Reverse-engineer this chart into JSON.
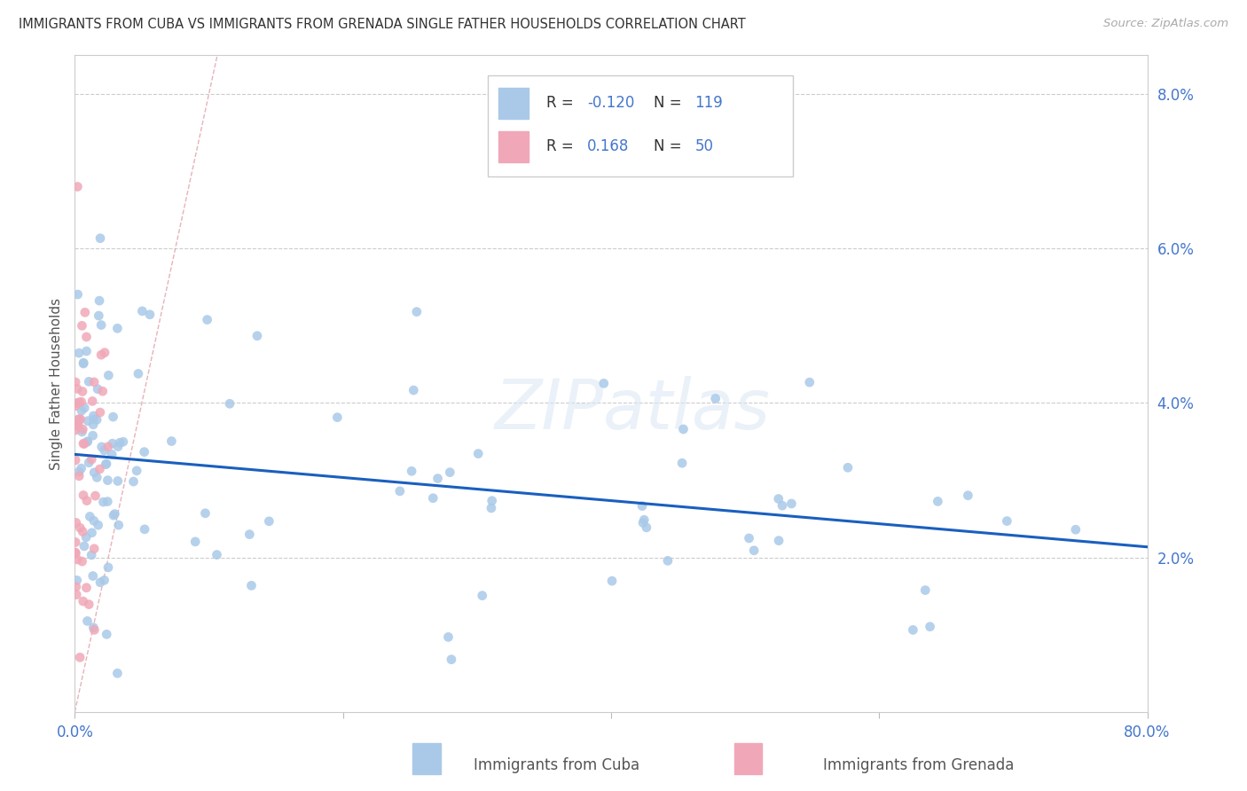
{
  "title": "IMMIGRANTS FROM CUBA VS IMMIGRANTS FROM GRENADA SINGLE FATHER HOUSEHOLDS CORRELATION CHART",
  "source": "Source: ZipAtlas.com",
  "ylabel": "Single Father Households",
  "legend_labels": [
    "Immigrants from Cuba",
    "Immigrants from Grenada"
  ],
  "legend_R": [
    "-0.120",
    "0.168"
  ],
  "legend_N": [
    "119",
    "50"
  ],
  "y_ticks": [
    0.0,
    0.02,
    0.04,
    0.06,
    0.08
  ],
  "y_tick_labels": [
    "",
    "2.0%",
    "4.0%",
    "6.0%",
    "8.0%"
  ],
  "xlim": [
    0.0,
    0.8
  ],
  "ylim": [
    0.0,
    0.085
  ],
  "color_cuba": "#aac9e8",
  "color_grenada": "#f0a8b8",
  "color_trend_cuba": "#1a5fbf",
  "color_trend_grenada": "#e08090",
  "color_grid": "#cccccc",
  "color_axis_text": "#4477cc",
  "color_title": "#333333",
  "watermark": "ZIPatlas",
  "seed": 123
}
